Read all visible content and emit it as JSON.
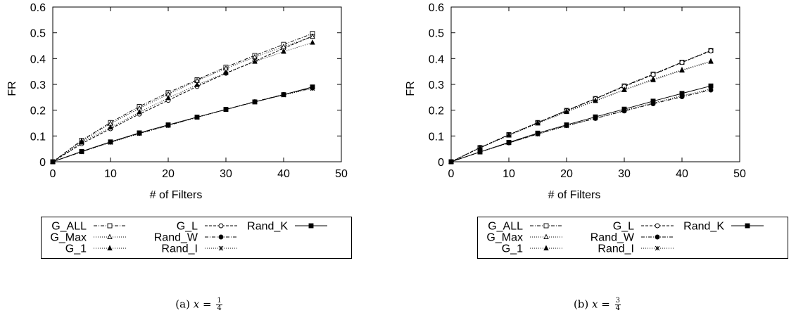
{
  "chart_data": [
    {
      "type": "line",
      "xlabel": "# of Filters",
      "ylabel": "FR",
      "xlim": [
        0,
        50
      ],
      "ylim": [
        0,
        0.6
      ],
      "xticks": [
        "0",
        "10",
        "20",
        "30",
        "40",
        "50"
      ],
      "yticks": [
        "0",
        "0.1",
        "0.2",
        "0.3",
        "0.4",
        "0.5",
        "0.6"
      ],
      "grid": false,
      "legend": "below",
      "caption_prefix": "(a)",
      "caption_var": "x",
      "caption_num": "1",
      "caption_den": "4",
      "x": [
        0,
        5,
        10,
        15,
        20,
        25,
        30,
        35,
        40,
        45
      ],
      "series": [
        {
          "name": "G_ALL",
          "marker": "square-open",
          "dash": "dashdot",
          "values": [
            0,
            0.083,
            0.152,
            0.214,
            0.268,
            0.318,
            0.367,
            0.412,
            0.455,
            0.497
          ]
        },
        {
          "name": "G_L",
          "marker": "circle-open",
          "dash": "dashed",
          "values": [
            0,
            0.07,
            0.128,
            0.185,
            0.238,
            0.292,
            0.343,
            0.39,
            0.44,
            0.487
          ]
        },
        {
          "name": "Rand_K",
          "marker": "square-filled",
          "dash": "solid",
          "values": [
            0,
            0.04,
            0.077,
            0.112,
            0.143,
            0.173,
            0.203,
            0.232,
            0.26,
            0.29
          ]
        },
        {
          "name": "G_Max",
          "marker": "triangle-open",
          "dash": "dotted",
          "values": [
            0,
            0.08,
            0.148,
            0.207,
            0.262,
            0.314,
            0.362,
            0.406,
            0.446,
            0.485
          ]
        },
        {
          "name": "Rand_W",
          "marker": "circle-filled",
          "dash": "dashdot",
          "values": [
            0,
            0.039,
            0.076,
            0.11,
            0.141,
            0.173,
            0.203,
            0.233,
            0.261,
            0.286
          ]
        },
        {
          "name": "G_1",
          "marker": "triangle-filled",
          "dash": "dotted",
          "values": [
            0,
            0.075,
            0.133,
            0.192,
            0.247,
            0.298,
            0.345,
            0.388,
            0.427,
            0.462
          ]
        },
        {
          "name": "Rand_I",
          "marker": "star",
          "dash": "dotted",
          "values": [
            0,
            0.038,
            0.075,
            0.109,
            0.14,
            0.172,
            0.202,
            0.232,
            0.259,
            0.284
          ]
        }
      ]
    },
    {
      "type": "line",
      "xlabel": "# of Filters",
      "ylabel": "FR",
      "xlim": [
        0,
        50
      ],
      "ylim": [
        0,
        0.6
      ],
      "xticks": [
        "0",
        "10",
        "20",
        "30",
        "40",
        "50"
      ],
      "yticks": [
        "0",
        "0.1",
        "0.2",
        "0.3",
        "0.4",
        "0.5",
        "0.6"
      ],
      "grid": false,
      "legend": "below",
      "caption_prefix": "(b)",
      "caption_var": "x",
      "caption_num": "3",
      "caption_den": "4",
      "x": [
        0,
        5,
        10,
        15,
        20,
        25,
        30,
        35,
        40,
        45
      ],
      "series": [
        {
          "name": "G_ALL",
          "marker": "square-open",
          "dash": "dashdot",
          "values": [
            0,
            0.055,
            0.105,
            0.152,
            0.199,
            0.245,
            0.294,
            0.34,
            0.386,
            0.432
          ]
        },
        {
          "name": "G_L",
          "marker": "circle-open",
          "dash": "dashed",
          "values": [
            0,
            0.054,
            0.104,
            0.151,
            0.198,
            0.244,
            0.292,
            0.338,
            0.385,
            0.43
          ]
        },
        {
          "name": "Rand_K",
          "marker": "square-filled",
          "dash": "solid",
          "values": [
            0,
            0.038,
            0.075,
            0.111,
            0.143,
            0.174,
            0.204,
            0.235,
            0.265,
            0.294
          ]
        },
        {
          "name": "G_Max",
          "marker": "triangle-open",
          "dash": "dotted",
          "values": [
            0,
            0.054,
            0.103,
            0.15,
            0.195,
            0.237,
            0.28,
            0.32,
            0.356,
            0.39
          ]
        },
        {
          "name": "Rand_W",
          "marker": "circle-filled",
          "dash": "dashdot",
          "values": [
            0,
            0.038,
            0.073,
            0.108,
            0.14,
            0.168,
            0.197,
            0.225,
            0.252,
            0.278
          ]
        },
        {
          "name": "G_1",
          "marker": "triangle-filled",
          "dash": "dotted",
          "values": [
            0,
            0.054,
            0.102,
            0.149,
            0.193,
            0.236,
            0.278,
            0.317,
            0.354,
            0.388
          ]
        },
        {
          "name": "Rand_I",
          "marker": "star",
          "dash": "dotted",
          "values": [
            0,
            0.038,
            0.073,
            0.107,
            0.139,
            0.169,
            0.199,
            0.228,
            0.256,
            0.282
          ]
        }
      ]
    }
  ]
}
